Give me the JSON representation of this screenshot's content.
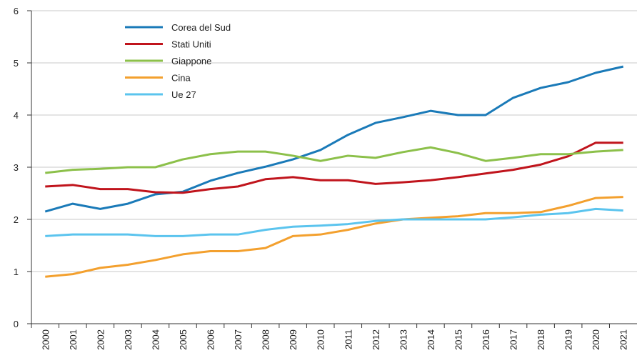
{
  "chart_data": {
    "type": "line",
    "categories": [
      "2000",
      "2001",
      "2002",
      "2003",
      "2004",
      "2005",
      "2006",
      "2007",
      "2008",
      "2009",
      "2010",
      "2011",
      "2012",
      "2013",
      "2014",
      "2015",
      "2016",
      "2017",
      "2018",
      "2019",
      "2020",
      "2021"
    ],
    "series": [
      {
        "name": "Corea del Sud",
        "color": "#1a7ab8",
        "values": [
          2.15,
          2.3,
          2.2,
          2.3,
          2.48,
          2.53,
          2.74,
          2.89,
          3.01,
          3.15,
          3.33,
          3.62,
          3.85,
          3.96,
          4.08,
          4.0,
          4.0,
          4.33,
          4.52,
          4.63,
          4.81,
          4.93
        ]
      },
      {
        "name": "Stati Uniti",
        "color": "#c0141c",
        "values": [
          2.63,
          2.66,
          2.58,
          2.58,
          2.52,
          2.51,
          2.58,
          2.63,
          2.77,
          2.81,
          2.75,
          2.75,
          2.68,
          2.71,
          2.75,
          2.81,
          2.88,
          2.95,
          3.05,
          3.21,
          3.47,
          3.47
        ]
      },
      {
        "name": "Giappone",
        "color": "#8cc04a",
        "values": [
          2.89,
          2.95,
          2.97,
          3.0,
          3.0,
          3.15,
          3.25,
          3.3,
          3.3,
          3.22,
          3.12,
          3.22,
          3.18,
          3.29,
          3.38,
          3.27,
          3.12,
          3.18,
          3.25,
          3.25,
          3.3,
          3.33
        ]
      },
      {
        "name": "Cina",
        "color": "#f3a02e",
        "values": [
          0.9,
          0.95,
          1.07,
          1.13,
          1.22,
          1.33,
          1.39,
          1.39,
          1.45,
          1.68,
          1.71,
          1.8,
          1.92,
          2.0,
          2.03,
          2.06,
          2.12,
          2.12,
          2.14,
          2.26,
          2.41,
          2.43
        ]
      },
      {
        "name": "Ue 27",
        "color": "#5bc4ee",
        "values": [
          1.68,
          1.71,
          1.71,
          1.71,
          1.68,
          1.68,
          1.71,
          1.71,
          1.8,
          1.86,
          1.88,
          1.91,
          1.97,
          2.0,
          2.0,
          2.0,
          2.0,
          2.04,
          2.09,
          2.12,
          2.2,
          2.17
        ]
      }
    ],
    "ylim": [
      0,
      6
    ],
    "yticks": [
      0,
      1,
      2,
      3,
      4,
      5,
      6
    ],
    "grid": true,
    "legend": "upper left"
  }
}
